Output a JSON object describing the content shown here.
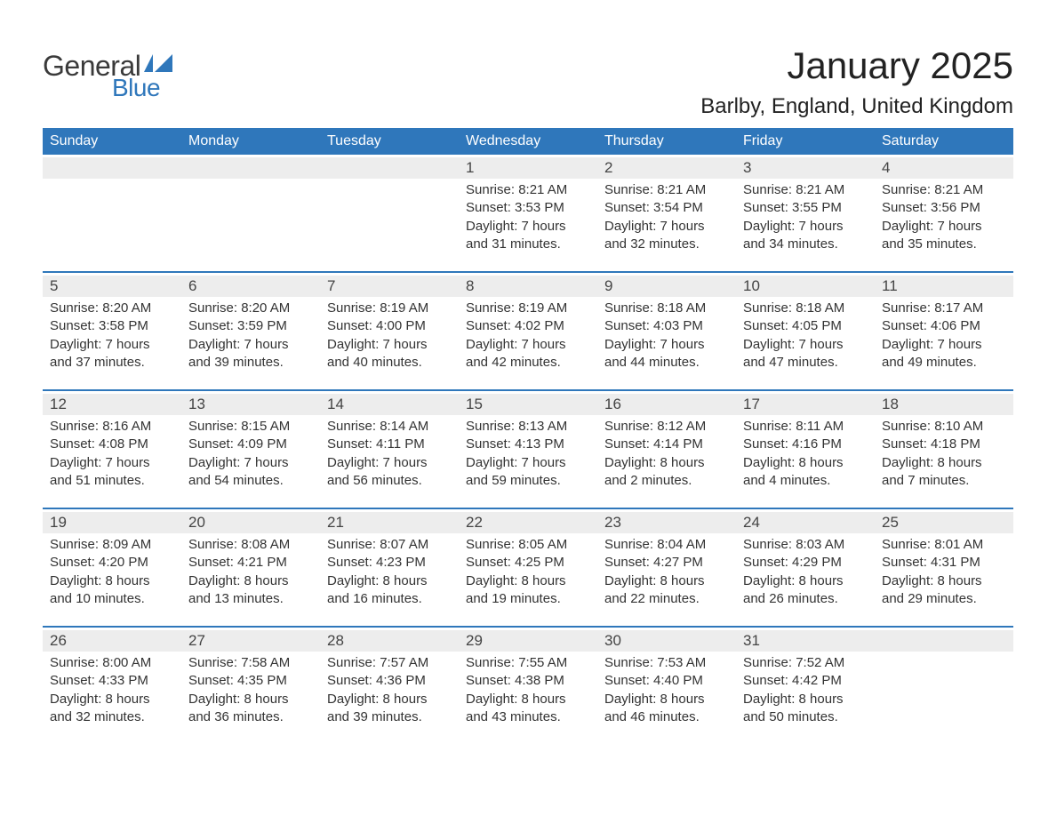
{
  "logo": {
    "text1": "General",
    "text2": "Blue",
    "shape_color": "#2f77bb"
  },
  "title": "January 2025",
  "location": "Barlby, England, United Kingdom",
  "colors": {
    "header_bg": "#2f77bb",
    "header_text": "#ffffff",
    "daynum_bg": "#ededed",
    "week_border": "#2f77bb",
    "body_text": "#333333",
    "background": "#ffffff"
  },
  "fonts": {
    "title_size_pt": 32,
    "location_size_pt": 18,
    "dow_size_pt": 12,
    "daynum_size_pt": 13,
    "body_size_pt": 11
  },
  "days_of_week": [
    "Sunday",
    "Monday",
    "Tuesday",
    "Wednesday",
    "Thursday",
    "Friday",
    "Saturday"
  ],
  "weeks": [
    [
      null,
      null,
      null,
      {
        "n": "1",
        "sunrise": "8:21 AM",
        "sunset": "3:53 PM",
        "dl1": "7 hours",
        "dl2": "31 minutes."
      },
      {
        "n": "2",
        "sunrise": "8:21 AM",
        "sunset": "3:54 PM",
        "dl1": "7 hours",
        "dl2": "32 minutes."
      },
      {
        "n": "3",
        "sunrise": "8:21 AM",
        "sunset": "3:55 PM",
        "dl1": "7 hours",
        "dl2": "34 minutes."
      },
      {
        "n": "4",
        "sunrise": "8:21 AM",
        "sunset": "3:56 PM",
        "dl1": "7 hours",
        "dl2": "35 minutes."
      }
    ],
    [
      {
        "n": "5",
        "sunrise": "8:20 AM",
        "sunset": "3:58 PM",
        "dl1": "7 hours",
        "dl2": "37 minutes."
      },
      {
        "n": "6",
        "sunrise": "8:20 AM",
        "sunset": "3:59 PM",
        "dl1": "7 hours",
        "dl2": "39 minutes."
      },
      {
        "n": "7",
        "sunrise": "8:19 AM",
        "sunset": "4:00 PM",
        "dl1": "7 hours",
        "dl2": "40 minutes."
      },
      {
        "n": "8",
        "sunrise": "8:19 AM",
        "sunset": "4:02 PM",
        "dl1": "7 hours",
        "dl2": "42 minutes."
      },
      {
        "n": "9",
        "sunrise": "8:18 AM",
        "sunset": "4:03 PM",
        "dl1": "7 hours",
        "dl2": "44 minutes."
      },
      {
        "n": "10",
        "sunrise": "8:18 AM",
        "sunset": "4:05 PM",
        "dl1": "7 hours",
        "dl2": "47 minutes."
      },
      {
        "n": "11",
        "sunrise": "8:17 AM",
        "sunset": "4:06 PM",
        "dl1": "7 hours",
        "dl2": "49 minutes."
      }
    ],
    [
      {
        "n": "12",
        "sunrise": "8:16 AM",
        "sunset": "4:08 PM",
        "dl1": "7 hours",
        "dl2": "51 minutes."
      },
      {
        "n": "13",
        "sunrise": "8:15 AM",
        "sunset": "4:09 PM",
        "dl1": "7 hours",
        "dl2": "54 minutes."
      },
      {
        "n": "14",
        "sunrise": "8:14 AM",
        "sunset": "4:11 PM",
        "dl1": "7 hours",
        "dl2": "56 minutes."
      },
      {
        "n": "15",
        "sunrise": "8:13 AM",
        "sunset": "4:13 PM",
        "dl1": "7 hours",
        "dl2": "59 minutes."
      },
      {
        "n": "16",
        "sunrise": "8:12 AM",
        "sunset": "4:14 PM",
        "dl1": "8 hours",
        "dl2": "2 minutes."
      },
      {
        "n": "17",
        "sunrise": "8:11 AM",
        "sunset": "4:16 PM",
        "dl1": "8 hours",
        "dl2": "4 minutes."
      },
      {
        "n": "18",
        "sunrise": "8:10 AM",
        "sunset": "4:18 PM",
        "dl1": "8 hours",
        "dl2": "7 minutes."
      }
    ],
    [
      {
        "n": "19",
        "sunrise": "8:09 AM",
        "sunset": "4:20 PM",
        "dl1": "8 hours",
        "dl2": "10 minutes."
      },
      {
        "n": "20",
        "sunrise": "8:08 AM",
        "sunset": "4:21 PM",
        "dl1": "8 hours",
        "dl2": "13 minutes."
      },
      {
        "n": "21",
        "sunrise": "8:07 AM",
        "sunset": "4:23 PM",
        "dl1": "8 hours",
        "dl2": "16 minutes."
      },
      {
        "n": "22",
        "sunrise": "8:05 AM",
        "sunset": "4:25 PM",
        "dl1": "8 hours",
        "dl2": "19 minutes."
      },
      {
        "n": "23",
        "sunrise": "8:04 AM",
        "sunset": "4:27 PM",
        "dl1": "8 hours",
        "dl2": "22 minutes."
      },
      {
        "n": "24",
        "sunrise": "8:03 AM",
        "sunset": "4:29 PM",
        "dl1": "8 hours",
        "dl2": "26 minutes."
      },
      {
        "n": "25",
        "sunrise": "8:01 AM",
        "sunset": "4:31 PM",
        "dl1": "8 hours",
        "dl2": "29 minutes."
      }
    ],
    [
      {
        "n": "26",
        "sunrise": "8:00 AM",
        "sunset": "4:33 PM",
        "dl1": "8 hours",
        "dl2": "32 minutes."
      },
      {
        "n": "27",
        "sunrise": "7:58 AM",
        "sunset": "4:35 PM",
        "dl1": "8 hours",
        "dl2": "36 minutes."
      },
      {
        "n": "28",
        "sunrise": "7:57 AM",
        "sunset": "4:36 PM",
        "dl1": "8 hours",
        "dl2": "39 minutes."
      },
      {
        "n": "29",
        "sunrise": "7:55 AM",
        "sunset": "4:38 PM",
        "dl1": "8 hours",
        "dl2": "43 minutes."
      },
      {
        "n": "30",
        "sunrise": "7:53 AM",
        "sunset": "4:40 PM",
        "dl1": "8 hours",
        "dl2": "46 minutes."
      },
      {
        "n": "31",
        "sunrise": "7:52 AM",
        "sunset": "4:42 PM",
        "dl1": "8 hours",
        "dl2": "50 minutes."
      },
      null
    ]
  ],
  "labels": {
    "sunrise_prefix": "Sunrise: ",
    "sunset_prefix": "Sunset: ",
    "daylight_prefix": "Daylight: ",
    "and_word": "and "
  }
}
